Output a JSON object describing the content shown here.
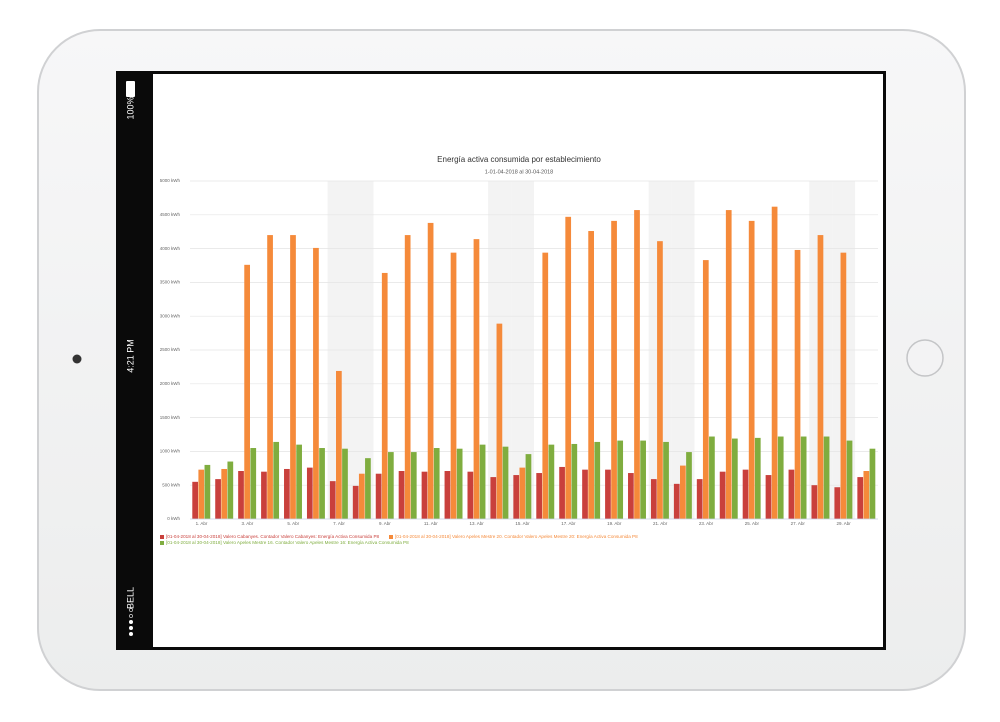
{
  "status_bar": {
    "battery": "100%",
    "time": "4:21 PM",
    "carrier": "BELL"
  },
  "chart_data": {
    "type": "bar",
    "title": "Energía activa consumida por establecimiento",
    "subtitle": "1-01-04-2018 al 30-04-2018",
    "categories": [
      "1. Abr",
      null,
      "3. Abr",
      null,
      "5. Abr",
      null,
      "7. Abr",
      null,
      "9. Abr",
      null,
      "11. Abr",
      null,
      "13. Abr",
      null,
      "15. Abr",
      null,
      "17. Abr",
      null,
      "19. Abr",
      null,
      "21. Abr",
      null,
      "23. Abr",
      null,
      "25. Abr",
      null,
      "27. Abr",
      null,
      "29. Abr",
      null
    ],
    "series": [
      {
        "name": "[01-04-2018 al 30-04-2018] Valero Cabanyes. Contador Valero Cabanyes: Energía Activa Consumida P8",
        "color": "#c9403c",
        "values": [
          550,
          590,
          710,
          700,
          740,
          760,
          560,
          490,
          670,
          710,
          700,
          710,
          700,
          620,
          650,
          680,
          770,
          730,
          730,
          680,
          590,
          520,
          590,
          700,
          730,
          650,
          730,
          500,
          470,
          620
        ]
      },
      {
        "name": "[01-04-2018 al 30-04-2018] Valero Apeles Mestre 20. Contador Valero Apeles Mestre 20: Energía Activa Consumida P8",
        "color": "#f58a3a",
        "values": [
          730,
          740,
          3760,
          4200,
          4200,
          4010,
          2190,
          670,
          3640,
          4200,
          4380,
          3940,
          4140,
          2890,
          760,
          3940,
          4470,
          4260,
          4410,
          4570,
          4110,
          790,
          3830,
          4570,
          4410,
          4620,
          3980,
          4200,
          3940,
          710
        ]
      },
      {
        "name": "[01-04-2018 al 30-04-2018] Valero Apeles Mestre 16. Contador Valero Apeles Mestre 16: Energía Activa Consumida P8",
        "color": "#7fad3f",
        "values": [
          800,
          850,
          1050,
          1140,
          1100,
          1050,
          1040,
          900,
          990,
          990,
          1050,
          1040,
          1100,
          1070,
          960,
          1100,
          1110,
          1140,
          1160,
          1160,
          1140,
          990,
          1220,
          1190,
          1200,
          1220,
          1220,
          1220,
          1160,
          1040
        ]
      }
    ],
    "ylim": [
      0,
      5000
    ],
    "yticks": [
      {
        "value": 0,
        "label": "0 kWh"
      },
      {
        "value": 500,
        "label": "500 kWh"
      },
      {
        "value": 1000,
        "label": "1000 kWh"
      },
      {
        "value": 1500,
        "label": "1500 kWh"
      },
      {
        "value": 2000,
        "label": "2000 kWh"
      },
      {
        "value": 2500,
        "label": "2500 kWh"
      },
      {
        "value": 3000,
        "label": "3000 kWh"
      },
      {
        "value": 3500,
        "label": "3500 kWh"
      },
      {
        "value": 4000,
        "label": "4000 kWh"
      },
      {
        "value": 4500,
        "label": "4500 kWh"
      },
      {
        "value": 5000,
        "label": "5000 kWh"
      }
    ],
    "grid": true,
    "shaded_categories": [
      6,
      7,
      13,
      14,
      20,
      21,
      27,
      28
    ],
    "legend": "bottom-left"
  }
}
